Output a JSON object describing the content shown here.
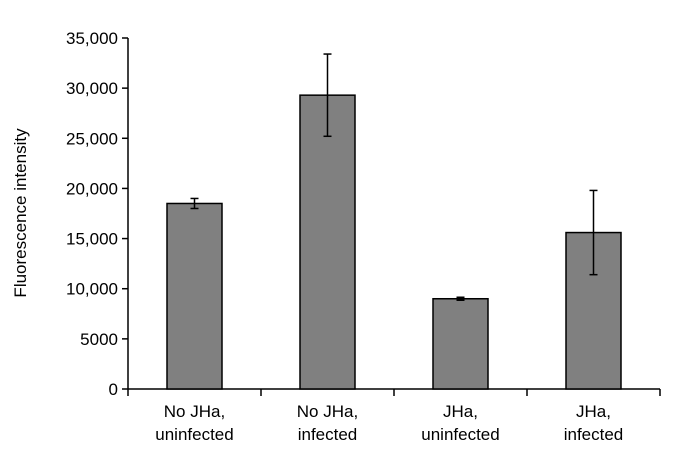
{
  "chart_data": {
    "type": "bar",
    "title": "",
    "ylabel": "Fluorescence intensity",
    "xlabel": "",
    "categories": [
      [
        "No JHa,",
        "uninfected"
      ],
      [
        "No JHa,",
        "infected"
      ],
      [
        "JHa,",
        "uninfected"
      ],
      [
        "JHa,",
        "infected"
      ]
    ],
    "values": [
      18500,
      29300,
      9000,
      15600
    ],
    "error": [
      500,
      4100,
      150,
      4200
    ],
    "ylim": [
      0,
      35000
    ],
    "yticks": [
      0,
      5000,
      10000,
      15000,
      20000,
      25000,
      30000,
      35000
    ],
    "ytick_labels": [
      "0",
      "5000",
      "10,000",
      "15,000",
      "20,000",
      "25,000",
      "30,000",
      "35,000"
    ],
    "grid": false,
    "bar_color": "#808080",
    "bar_stroke": "#000000"
  }
}
